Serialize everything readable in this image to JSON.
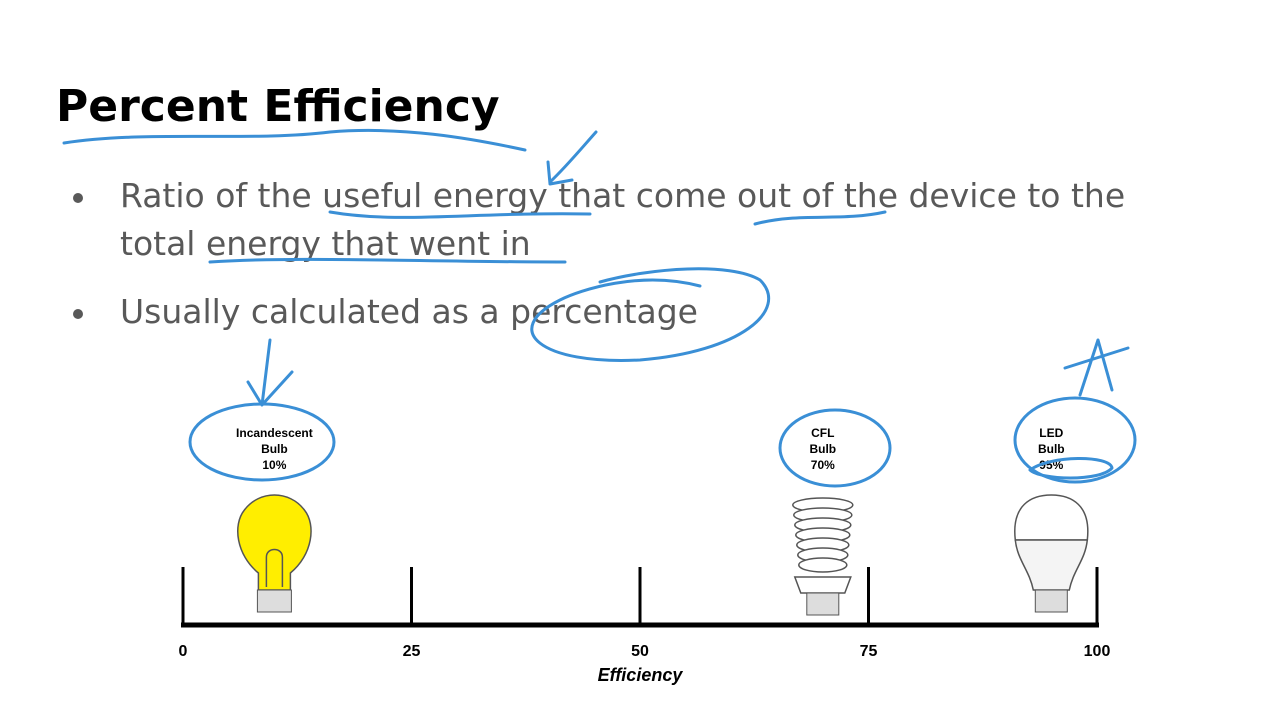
{
  "title": "Percent Efficiency",
  "bullets": [
    [
      "Ratio of the useful energy that come out of the device to the",
      "total energy that went in"
    ],
    [
      "Usually calculated as a percentage"
    ]
  ],
  "scale": {
    "label": "Efficiency",
    "lim": [
      0,
      100
    ],
    "ticks": [
      0,
      25,
      50,
      75,
      100
    ]
  },
  "bulbs": [
    {
      "kind": "incandescent",
      "lines": [
        "Incandescent",
        "Bulb"
      ],
      "value": 10,
      "value_label": "10%"
    },
    {
      "kind": "cfl",
      "lines": [
        "CFL",
        "Bulb"
      ],
      "value": 70,
      "value_label": "70%"
    },
    {
      "kind": "led",
      "lines": [
        "LED",
        "Bulb"
      ],
      "value": 95,
      "value_label": "95%"
    }
  ]
}
